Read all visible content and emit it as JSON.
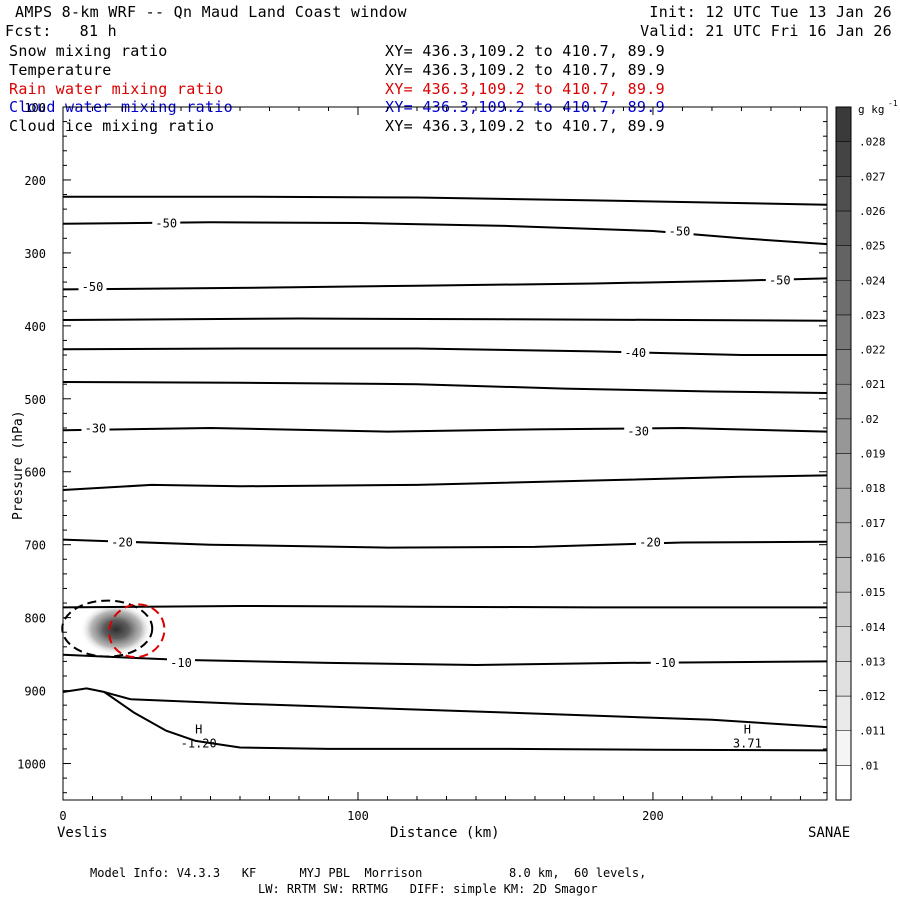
{
  "header": {
    "title": "AMPS 8-km WRF -- Qn Maud Land Coast window",
    "forecast": "Fcst:   81 h",
    "init": "Init: 12 UTC Tue 13 Jan 26",
    "valid": "Valid: 21 UTC Fri 16 Jan 26"
  },
  "fields": [
    {
      "name": "Snow mixing ratio",
      "xy": "XY= 436.3,109.2 to 410.7, 89.9",
      "color": "#000000"
    },
    {
      "name": "Temperature",
      "xy": "XY= 436.3,109.2 to 410.7, 89.9",
      "color": "#000000"
    },
    {
      "name": "Rain water mixing ratio",
      "xy": "XY= 436.3,109.2 to 410.7, 89.9",
      "color": "#dd0000"
    },
    {
      "name": "Cloud water mixing ratio",
      "xy": "XY= 436.3,109.2 to 410.7, 89.9",
      "color": "#0000cc"
    },
    {
      "name": "Cloud ice mixing ratio",
      "xy": "XY= 436.3,109.2 to 410.7, 89.9",
      "color": "#000000"
    }
  ],
  "footer": {
    "line1": "Model Info: V4.3.3   KF      MYJ PBL  Morrison            8.0 km,  60 levels,",
    "line2": "LW: RRTM SW: RRTMG   DIFF: simple KM: 2D Smagor"
  },
  "chart_data": {
    "type": "cross-section contour",
    "xlabel": "Distance (km)",
    "ylabel": "Pressure (hPa)",
    "xlim": [
      0,
      259
    ],
    "ylim": [
      1050,
      100
    ],
    "x_ticks": [
      0,
      100,
      200
    ],
    "y_ticks": [
      100,
      200,
      300,
      400,
      500,
      600,
      700,
      800,
      900,
      1000
    ],
    "endpoint_left": "Veslis",
    "endpoint_right": "SANAE",
    "colorbar": {
      "unit_base": "g kg",
      "unit_exp": "-1",
      "levels": [
        ".01",
        ".011",
        ".012",
        ".013",
        ".014",
        ".015",
        ".016",
        ".017",
        ".018",
        ".019",
        ".02",
        ".021",
        ".022",
        ".023",
        ".024",
        ".025",
        ".026",
        ".027",
        ".028"
      ],
      "min_color": "#ffffff",
      "max_color": "#3a3a3a"
    },
    "temperature_contours": [
      {
        "points": [
          [
            0,
            223
          ],
          [
            60,
            223
          ],
          [
            120,
            224
          ],
          [
            180,
            228
          ],
          [
            259,
            234
          ]
        ]
      },
      {
        "label": "-50",
        "label_at": [
          35,
          260
        ],
        "points": [
          [
            0,
            260
          ],
          [
            50,
            258
          ],
          [
            100,
            259
          ],
          [
            150,
            263
          ],
          [
            200,
            270
          ],
          [
            230,
            280
          ],
          [
            259,
            288
          ]
        ]
      },
      {
        "label": "-50",
        "label_at": [
          10,
          347
        ],
        "points": [
          [
            0,
            350
          ],
          [
            60,
            348
          ],
          [
            120,
            345
          ],
          [
            180,
            342
          ],
          [
            230,
            338
          ],
          [
            259,
            335
          ]
        ]
      },
      {
        "label": "-50",
        "label_at": [
          243,
          338
        ],
        "points": []
      },
      {
        "label": "-50",
        "label_at": [
          209,
          271
        ],
        "points": []
      },
      {
        "points": [
          [
            0,
            392
          ],
          [
            80,
            390
          ],
          [
            150,
            391
          ],
          [
            210,
            392
          ],
          [
            259,
            393
          ]
        ]
      },
      {
        "label": "-40",
        "label_at": [
          194,
          437
        ],
        "points": [
          [
            0,
            432
          ],
          [
            60,
            431
          ],
          [
            120,
            431
          ],
          [
            180,
            435
          ],
          [
            230,
            440
          ],
          [
            259,
            440
          ]
        ]
      },
      {
        "points": [
          [
            0,
            477
          ],
          [
            60,
            478
          ],
          [
            120,
            480
          ],
          [
            170,
            486
          ],
          [
            220,
            490
          ],
          [
            259,
            492
          ]
        ]
      },
      {
        "label": "-30",
        "label_at": [
          11,
          541
        ],
        "points": [
          [
            0,
            543
          ],
          [
            50,
            540
          ],
          [
            110,
            545
          ],
          [
            160,
            542
          ],
          [
            210,
            540
          ],
          [
            259,
            545
          ]
        ]
      },
      {
        "label": "-30",
        "label_at": [
          195,
          545
        ],
        "points": []
      },
      {
        "points": [
          [
            0,
            625
          ],
          [
            30,
            618
          ],
          [
            60,
            620
          ],
          [
            120,
            618
          ],
          [
            180,
            612
          ],
          [
            230,
            607
          ],
          [
            259,
            605
          ]
        ]
      },
      {
        "label": "-20",
        "label_at": [
          20,
          697
        ],
        "points": [
          [
            0,
            693
          ],
          [
            50,
            700
          ],
          [
            110,
            704
          ],
          [
            160,
            703
          ],
          [
            210,
            697
          ],
          [
            259,
            696
          ]
        ]
      },
      {
        "label": "-20",
        "label_at": [
          199,
          697
        ],
        "points": []
      },
      {
        "points": [
          [
            0,
            786
          ],
          [
            60,
            784
          ],
          [
            120,
            785
          ],
          [
            180,
            786
          ],
          [
            259,
            786
          ]
        ]
      },
      {
        "label": "-10",
        "label_at": [
          40,
          862
        ],
        "points": [
          [
            0,
            851
          ],
          [
            40,
            858
          ],
          [
            90,
            862
          ],
          [
            140,
            865
          ],
          [
            190,
            862
          ],
          [
            259,
            860
          ]
        ]
      },
      {
        "label": "-10",
        "label_at": [
          204,
          862
        ],
        "points": []
      }
    ],
    "terrain": {
      "points": [
        [
          0,
          902
        ],
        [
          8,
          897
        ],
        [
          14,
          902
        ],
        [
          24,
          930
        ],
        [
          35,
          955
        ],
        [
          45,
          969
        ],
        [
          60,
          978
        ],
        [
          90,
          980
        ],
        [
          150,
          980
        ],
        [
          200,
          981
        ],
        [
          259,
          982
        ]
      ],
      "plateau": [
        [
          23,
          912
        ],
        [
          60,
          918
        ],
        [
          150,
          930
        ],
        [
          220,
          940
        ],
        [
          259,
          950
        ]
      ],
      "pressure_labels": [
        {
          "mark": "H",
          "value": "-1.20",
          "x": 46
        },
        {
          "mark": "H",
          "value": "3.71",
          "x": 232
        }
      ]
    },
    "snow_mixing_ratio_blob": {
      "center": [
        18,
        816
      ],
      "peak": 0.028
    },
    "snow_dashed_contour": {
      "center": [
        15,
        815
      ],
      "color": "#000000"
    },
    "rain_dashed_contour": {
      "center": [
        25,
        818
      ],
      "color": "#dd0000"
    }
  }
}
